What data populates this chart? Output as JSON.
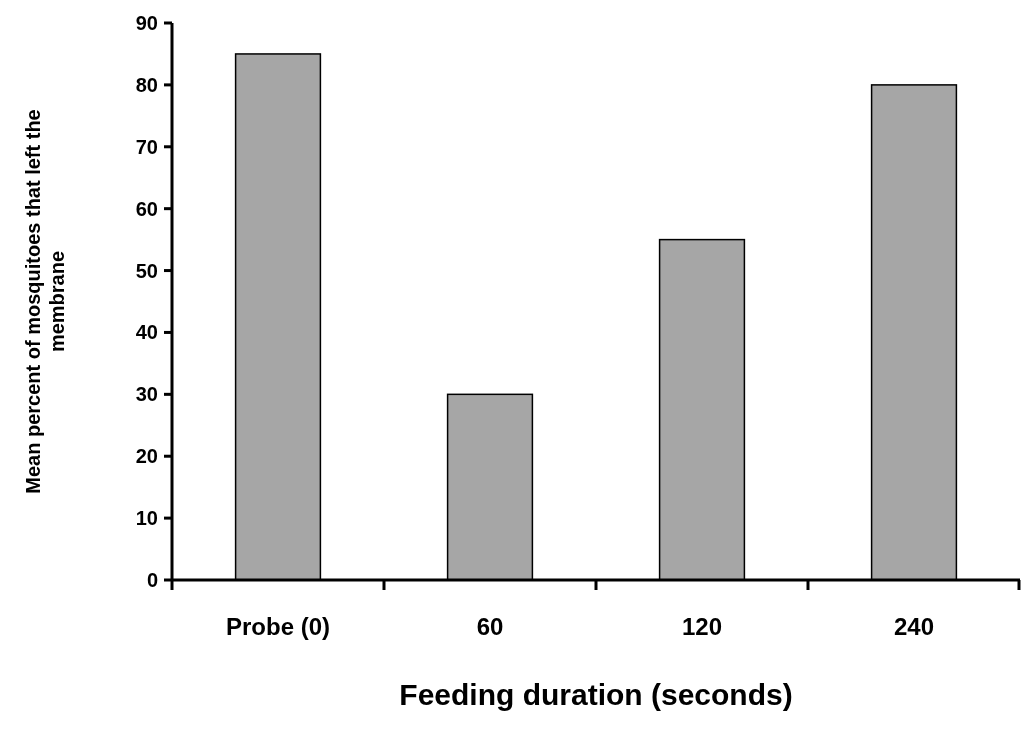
{
  "chart_data": {
    "type": "bar",
    "xlabel": "Feeding duration (seconds)",
    "ylabel": "Mean percent of mosquitoes that left the membrane",
    "categories": [
      "Probe (0)",
      "60",
      "120",
      "240"
    ],
    "values": [
      85,
      30,
      55,
      80
    ],
    "color": "#a6a6a6",
    "ylim": [
      0,
      90
    ],
    "yticks": [
      0,
      10,
      20,
      30,
      40,
      50,
      60,
      70,
      80,
      90
    ],
    "grid": false
  }
}
